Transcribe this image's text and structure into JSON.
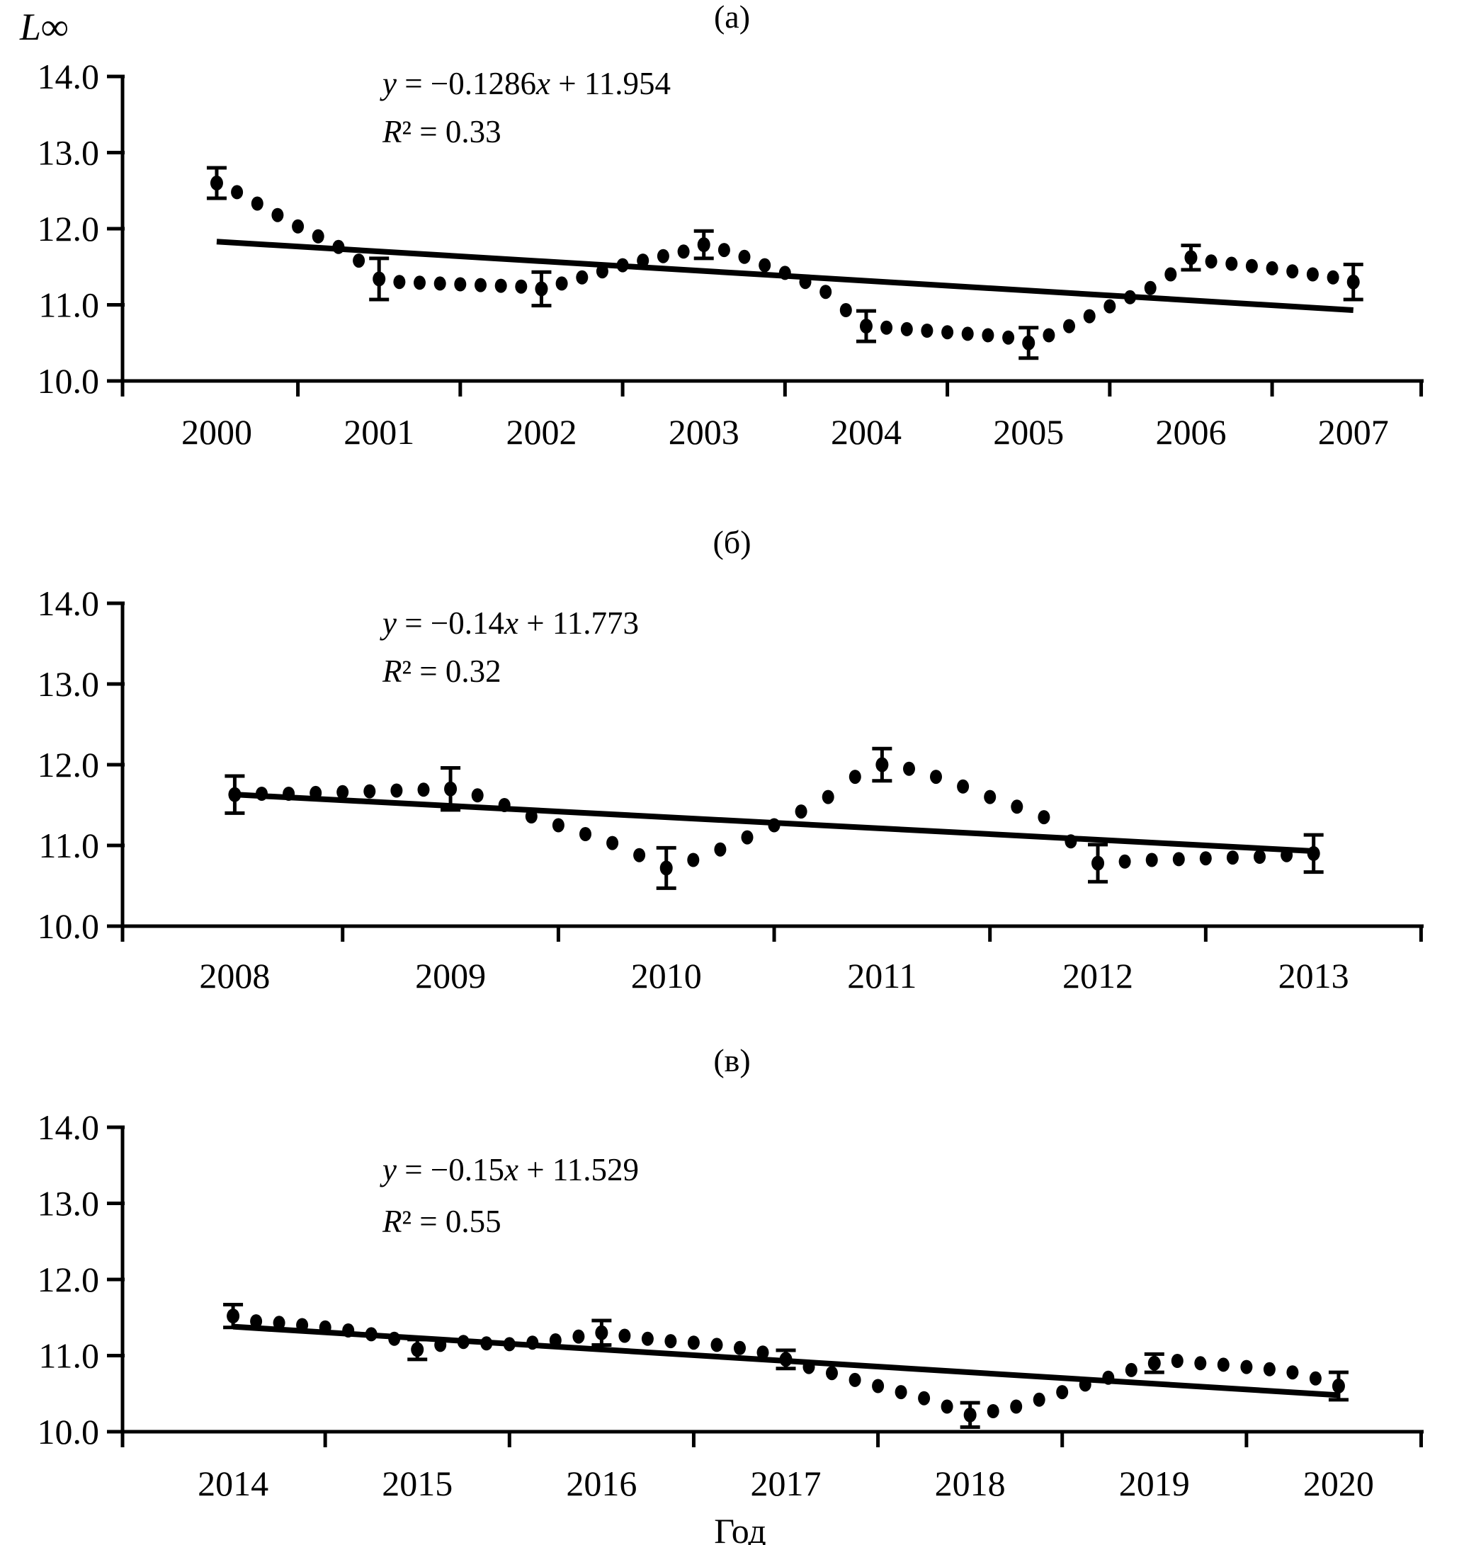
{
  "page": {
    "background": "#ffffff",
    "ink": "#000000"
  },
  "figure": {
    "y_axis_label": "L∞",
    "x_axis_label": "Год"
  },
  "chart_data": [
    {
      "type": "scatter",
      "panel_label": "(а)",
      "equation": "y = −0.1286x + 11.954",
      "r_squared": "R² = 0.33",
      "ylim": [
        10.0,
        14.0
      ],
      "ytick_labels": [
        "14.0",
        "13.0",
        "12.0",
        "11.0",
        "10.0"
      ],
      "yticks": [
        14.0,
        13.0,
        12.0,
        11.0,
        10.0
      ],
      "year_labels": [
        2000,
        2001,
        2002,
        2003,
        2004,
        2005,
        2006,
        2007
      ],
      "x_domain": [
        1999.42,
        2007.42
      ],
      "legend": "none",
      "grid": false,
      "trend": {
        "x1": 2000,
        "y1": 11.83,
        "x2": 2007,
        "y2": 10.93
      },
      "points": [
        [
          2000.0,
          12.6
        ],
        [
          2000.125,
          12.48
        ],
        [
          2000.25,
          12.33
        ],
        [
          2000.375,
          12.18
        ],
        [
          2000.5,
          12.03
        ],
        [
          2000.625,
          11.9
        ],
        [
          2000.75,
          11.76
        ],
        [
          2000.875,
          11.58
        ],
        [
          2001.0,
          11.34
        ],
        [
          2001.125,
          11.3
        ],
        [
          2001.25,
          11.29
        ],
        [
          2001.375,
          11.28
        ],
        [
          2001.5,
          11.27
        ],
        [
          2001.625,
          11.26
        ],
        [
          2001.75,
          11.25
        ],
        [
          2001.875,
          11.24
        ],
        [
          2002.0,
          11.21
        ],
        [
          2002.125,
          11.28
        ],
        [
          2002.25,
          11.36
        ],
        [
          2002.375,
          11.44
        ],
        [
          2002.5,
          11.52
        ],
        [
          2002.625,
          11.58
        ],
        [
          2002.75,
          11.64
        ],
        [
          2002.875,
          11.7
        ],
        [
          2003.0,
          11.79
        ],
        [
          2003.125,
          11.72
        ],
        [
          2003.25,
          11.63
        ],
        [
          2003.375,
          11.52
        ],
        [
          2003.5,
          11.42
        ],
        [
          2003.625,
          11.3
        ],
        [
          2003.75,
          11.17
        ],
        [
          2003.875,
          10.93
        ],
        [
          2004.0,
          10.72
        ],
        [
          2004.125,
          10.7
        ],
        [
          2004.25,
          10.68
        ],
        [
          2004.375,
          10.66
        ],
        [
          2004.5,
          10.64
        ],
        [
          2004.625,
          10.62
        ],
        [
          2004.75,
          10.6
        ],
        [
          2004.875,
          10.57
        ],
        [
          2005.0,
          10.5
        ],
        [
          2005.125,
          10.6
        ],
        [
          2005.25,
          10.72
        ],
        [
          2005.375,
          10.85
        ],
        [
          2005.5,
          10.98
        ],
        [
          2005.625,
          11.1
        ],
        [
          2005.75,
          11.22
        ],
        [
          2005.875,
          11.4
        ],
        [
          2006.0,
          11.62
        ],
        [
          2006.125,
          11.57
        ],
        [
          2006.25,
          11.54
        ],
        [
          2006.375,
          11.51
        ],
        [
          2006.5,
          11.48
        ],
        [
          2006.625,
          11.44
        ],
        [
          2006.75,
          11.4
        ],
        [
          2006.875,
          11.36
        ],
        [
          2007.0,
          11.3
        ]
      ],
      "error_bars": [
        {
          "x": 2000,
          "y": 12.6,
          "e": 0.2
        },
        {
          "x": 2001,
          "y": 11.34,
          "e": 0.27
        },
        {
          "x": 2002,
          "y": 11.21,
          "e": 0.22
        },
        {
          "x": 2003,
          "y": 11.79,
          "e": 0.18
        },
        {
          "x": 2004,
          "y": 10.72,
          "e": 0.2
        },
        {
          "x": 2005,
          "y": 10.5,
          "e": 0.2
        },
        {
          "x": 2006,
          "y": 11.62,
          "e": 0.16
        },
        {
          "x": 2007,
          "y": 11.3,
          "e": 0.23
        }
      ]
    },
    {
      "type": "scatter",
      "panel_label": "(б)",
      "equation": "y = −0.14x + 11.773",
      "r_squared": "R² = 0.32",
      "ylim": [
        10.0,
        14.0
      ],
      "ytick_labels": [
        "14.0",
        "13.0",
        "12.0",
        "11.0",
        "10.0"
      ],
      "yticks": [
        14.0,
        13.0,
        12.0,
        11.0,
        10.0
      ],
      "year_labels": [
        2008,
        2009,
        2010,
        2011,
        2012,
        2013
      ],
      "x_domain": [
        2007.48,
        2013.5
      ],
      "legend": "none",
      "grid": false,
      "trend": {
        "x1": 2008,
        "y1": 11.63,
        "x2": 2013,
        "y2": 10.93
      },
      "points": [
        [
          2008.0,
          11.63
        ],
        [
          2008.125,
          11.64
        ],
        [
          2008.25,
          11.64
        ],
        [
          2008.375,
          11.65
        ],
        [
          2008.5,
          11.66
        ],
        [
          2008.625,
          11.67
        ],
        [
          2008.75,
          11.68
        ],
        [
          2008.875,
          11.69
        ],
        [
          2009.0,
          11.7
        ],
        [
          2009.125,
          11.62
        ],
        [
          2009.25,
          11.5
        ],
        [
          2009.375,
          11.36
        ],
        [
          2009.5,
          11.25
        ],
        [
          2009.625,
          11.14
        ],
        [
          2009.75,
          11.03
        ],
        [
          2009.875,
          10.88
        ],
        [
          2010.0,
          10.72
        ],
        [
          2010.125,
          10.82
        ],
        [
          2010.25,
          10.95
        ],
        [
          2010.375,
          11.1
        ],
        [
          2010.5,
          11.25
        ],
        [
          2010.625,
          11.42
        ],
        [
          2010.75,
          11.6
        ],
        [
          2010.875,
          11.85
        ],
        [
          2011.0,
          12.0
        ],
        [
          2011.125,
          11.95
        ],
        [
          2011.25,
          11.85
        ],
        [
          2011.375,
          11.73
        ],
        [
          2011.5,
          11.6
        ],
        [
          2011.625,
          11.48
        ],
        [
          2011.75,
          11.35
        ],
        [
          2011.875,
          11.05
        ],
        [
          2012.0,
          10.78
        ],
        [
          2012.125,
          10.8
        ],
        [
          2012.25,
          10.82
        ],
        [
          2012.375,
          10.83
        ],
        [
          2012.5,
          10.84
        ],
        [
          2012.625,
          10.85
        ],
        [
          2012.75,
          10.86
        ],
        [
          2012.875,
          10.88
        ],
        [
          2013.0,
          10.9
        ]
      ],
      "error_bars": [
        {
          "x": 2008,
          "y": 11.63,
          "e": 0.23
        },
        {
          "x": 2009,
          "y": 11.7,
          "e": 0.26
        },
        {
          "x": 2010,
          "y": 10.72,
          "e": 0.25
        },
        {
          "x": 2011,
          "y": 12.0,
          "e": 0.2
        },
        {
          "x": 2012,
          "y": 10.78,
          "e": 0.23
        },
        {
          "x": 2013,
          "y": 10.9,
          "e": 0.23
        }
      ]
    },
    {
      "type": "scatter",
      "panel_label": "(в)",
      "equation": "y = −0.15x + 11.529",
      "r_squared": "R² = 0.55",
      "ylim": [
        10.0,
        14.0
      ],
      "ytick_labels": [
        "14.0",
        "13.0",
        "12.0",
        "11.0",
        "10.0"
      ],
      "yticks": [
        14.0,
        13.0,
        12.0,
        11.0,
        10.0
      ],
      "year_labels": [
        2014,
        2015,
        2016,
        2017,
        2018,
        2019,
        2020
      ],
      "x_domain": [
        2013.4,
        2020.45
      ],
      "legend": "none",
      "grid": false,
      "trend": {
        "x1": 2014,
        "y1": 11.38,
        "x2": 2020,
        "y2": 10.48
      },
      "points": [
        [
          2014.0,
          11.52
        ],
        [
          2014.125,
          11.45
        ],
        [
          2014.25,
          11.43
        ],
        [
          2014.375,
          11.4
        ],
        [
          2014.5,
          11.37
        ],
        [
          2014.625,
          11.33
        ],
        [
          2014.75,
          11.28
        ],
        [
          2014.875,
          11.22
        ],
        [
          2015.0,
          11.08
        ],
        [
          2015.125,
          11.14
        ],
        [
          2015.25,
          11.18
        ],
        [
          2015.375,
          11.16
        ],
        [
          2015.5,
          11.15
        ],
        [
          2015.625,
          11.17
        ],
        [
          2015.75,
          11.2
        ],
        [
          2015.875,
          11.25
        ],
        [
          2016.0,
          11.3
        ],
        [
          2016.125,
          11.26
        ],
        [
          2016.25,
          11.22
        ],
        [
          2016.375,
          11.19
        ],
        [
          2016.5,
          11.17
        ],
        [
          2016.625,
          11.14
        ],
        [
          2016.75,
          11.1
        ],
        [
          2016.875,
          11.04
        ],
        [
          2017.0,
          10.95
        ],
        [
          2017.125,
          10.85
        ],
        [
          2017.25,
          10.77
        ],
        [
          2017.375,
          10.68
        ],
        [
          2017.5,
          10.6
        ],
        [
          2017.625,
          10.52
        ],
        [
          2017.75,
          10.44
        ],
        [
          2017.875,
          10.33
        ],
        [
          2018.0,
          10.22
        ],
        [
          2018.125,
          10.27
        ],
        [
          2018.25,
          10.33
        ],
        [
          2018.375,
          10.42
        ],
        [
          2018.5,
          10.52
        ],
        [
          2018.625,
          10.62
        ],
        [
          2018.75,
          10.71
        ],
        [
          2018.875,
          10.81
        ],
        [
          2019.0,
          10.9
        ],
        [
          2019.125,
          10.93
        ],
        [
          2019.25,
          10.9
        ],
        [
          2019.375,
          10.88
        ],
        [
          2019.5,
          10.85
        ],
        [
          2019.625,
          10.82
        ],
        [
          2019.75,
          10.78
        ],
        [
          2019.875,
          10.7
        ],
        [
          2020.0,
          10.6
        ]
      ],
      "error_bars": [
        {
          "x": 2014,
          "y": 11.52,
          "e": 0.15
        },
        {
          "x": 2015,
          "y": 11.08,
          "e": 0.13
        },
        {
          "x": 2016,
          "y": 11.3,
          "e": 0.16
        },
        {
          "x": 2017,
          "y": 10.95,
          "e": 0.12
        },
        {
          "x": 2018,
          "y": 10.22,
          "e": 0.16
        },
        {
          "x": 2019,
          "y": 10.9,
          "e": 0.12
        },
        {
          "x": 2020,
          "y": 10.6,
          "e": 0.18
        }
      ]
    }
  ]
}
